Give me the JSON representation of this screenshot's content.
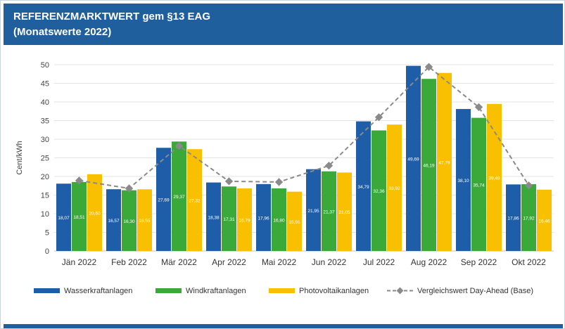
{
  "header": {
    "title_line1": "REFERENZMARKTWERT gem §13 EAG",
    "title_line2": "(Monatswerte 2022)"
  },
  "colors": {
    "header_bg": "#1f5f9e",
    "Wasserkraftanlagen": "#1e5ea8",
    "Windkraftanlagen": "#3aa93a",
    "Photovoltaikanlagen": "#f8c000",
    "Vergleichswert": "#8a8a8a"
  },
  "chart_data": {
    "type": "bar",
    "title": "REFERENZMARKTWERT gem §13 EAG",
    "subtitle": "(Monatswerte 2022)",
    "ylabel": "Cent/kWh",
    "ylim": [
      0,
      50
    ],
    "yticks": [
      0,
      5,
      10,
      15,
      20,
      25,
      30,
      35,
      40,
      45,
      50
    ],
    "grid": true,
    "legend_position": "bottom",
    "categories": [
      "Jän 2022",
      "Feb 2022",
      "Mär 2022",
      "Apr 2022",
      "Mai 2022",
      "Jun 2022",
      "Jul 2022",
      "Aug 2022",
      "Sep 2022",
      "Okt 2022"
    ],
    "series": [
      {
        "name": "Wasserkraftanlagen",
        "values": [
          18.07,
          16.57,
          27.69,
          18.38,
          17.96,
          21.95,
          34.79,
          49.69,
          38.1,
          17.86
        ],
        "labels": [
          "18,07",
          "16,57",
          "27,69",
          "18,38",
          "17,96",
          "21,95",
          "34,79",
          "49,69",
          "38,10",
          "17,86"
        ]
      },
      {
        "name": "Windkraftanlagen",
        "values": [
          18.51,
          16.3,
          29.37,
          17.31,
          16.8,
          21.37,
          32.36,
          46.19,
          35.74,
          17.92
        ],
        "labels": [
          "18,51",
          "16,30",
          "29,37",
          "17,31",
          "16,80",
          "21,37",
          "32,36",
          "46,19",
          "35,74",
          "17,92"
        ]
      },
      {
        "name": "Photovoltaikanlagen",
        "values": [
          20.6,
          16.55,
          27.32,
          16.79,
          15.91,
          21.05,
          33.92,
          47.79,
          39.48,
          16.46
        ],
        "labels": [
          "20,60",
          "16,55",
          "27,32",
          "16,79",
          "15,91",
          "21,05",
          "33,92",
          "47,79",
          "39,48",
          "16,46"
        ]
      }
    ],
    "line_series": {
      "name": "Vergleichswert Day-Ahead (Base)",
      "values": [
        18.9,
        16.8,
        28.2,
        18.7,
        18.5,
        22.9,
        35.9,
        49.4,
        38.6,
        17.6
      ]
    }
  }
}
